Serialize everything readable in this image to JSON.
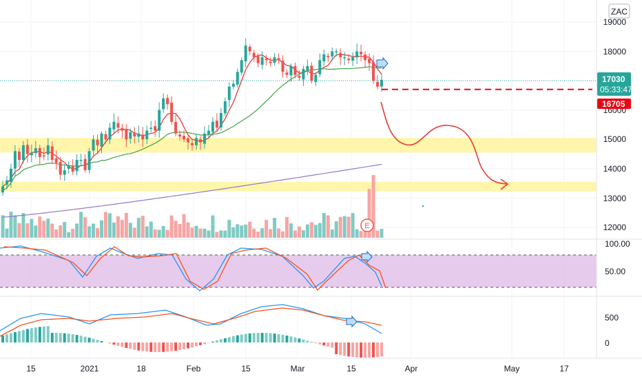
{
  "symbol": "ZAC",
  "colors": {
    "up": "#26a69a",
    "down": "#ef5350",
    "up_vol": "#80cbc4",
    "down_vol": "#f7a5a3",
    "ma_short": "#e53935",
    "ma_mid": "#43a047",
    "ma_long": "#9575cd",
    "stoch_k": "#2196f3",
    "stoch_d": "#f4511e",
    "stoch_band": "#e1bee7",
    "hl_zone": "#fff59d",
    "price_badge": "#26a69a",
    "target_badge": "#e50914",
    "drawing": "#e53935"
  },
  "price_axis": {
    "ticks": [
      "19000",
      "18000",
      "17000",
      "16000",
      "15000",
      "14000",
      "13000",
      "12000"
    ]
  },
  "last_price": {
    "value": "17030",
    "countdown": "05:33:47"
  },
  "target_price": {
    "value": "16705"
  },
  "earnings_marker": "E",
  "stoch_axis": {
    "ticks": [
      "100.00",
      "50.00"
    ]
  },
  "macd_axis": {
    "ticks": [
      "500",
      "0"
    ]
  },
  "time_axis": {
    "ticks": [
      "15",
      "2021",
      "18",
      "Feb",
      "15",
      "Mar",
      "15",
      "Apr",
      "May",
      "17"
    ]
  },
  "chart_data": {
    "type": "candlestick",
    "panes": [
      "price",
      "stochastic",
      "macd"
    ],
    "price_ylim": [
      11600,
      19300
    ],
    "close_series": [
      13400,
      13600,
      14000,
      14600,
      14300,
      14800,
      14500,
      14550,
      14700,
      14400,
      14450,
      14800,
      14300,
      14200,
      13800,
      13950,
      14100,
      13900,
      14300,
      14300,
      13950,
      14600,
      15000,
      14800,
      15200,
      15000,
      15400,
      15600,
      15400,
      15300,
      15000,
      15250,
      15100,
      15200,
      15000,
      15300,
      15400,
      15300,
      16000,
      16400,
      16200,
      15600,
      15200,
      15100,
      15000,
      14900,
      14800,
      15050,
      14900,
      15200,
      15300,
      15600,
      15400,
      15900,
      16300,
      16800,
      16900,
      17300,
      17700,
      18200,
      18000,
      17800,
      17600,
      17800,
      17700,
      17600,
      17800,
      17700,
      17300,
      17200,
      17500,
      17200,
      17100,
      17400,
      17500,
      17000,
      17200,
      17700,
      17900,
      17800,
      18000,
      18000,
      17800,
      17800,
      17700,
      17800,
      18000,
      17900,
      17700,
      17600,
      17000,
      16800,
      17030
    ],
    "horizontal_zones": [
      [
        14550,
        15050
      ],
      [
        13230,
        13550
      ]
    ],
    "target_line": 16705,
    "projection": "price drop toward 15000, bounce near 15400, then decline toward 13400 (late March – April)"
  }
}
